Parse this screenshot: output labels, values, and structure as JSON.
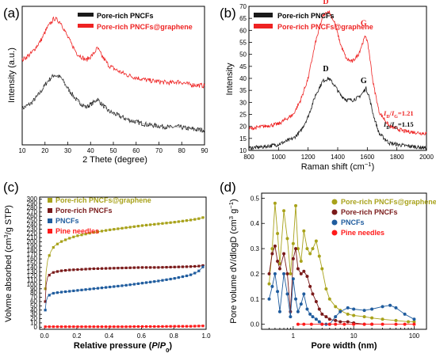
{
  "colors": {
    "black": "#1a1a1a",
    "red": "#ee2222",
    "olive": "#a8a21a",
    "maroon": "#7a1a1a",
    "blue": "#1f5c9e",
    "bright_red": "#ff1a1a"
  },
  "chart_data": [
    {
      "panel": "(a)",
      "type": "line",
      "xlabel": "2 Thete (degree)",
      "ylabel": "Intensity (a.u.)",
      "xlim": [
        10,
        90
      ],
      "x_ticks": [
        10,
        20,
        30,
        40,
        50,
        60,
        70,
        80,
        90
      ],
      "y_ticks_shown": false,
      "legend_position": "top-right",
      "series": [
        {
          "name": "Pore-rich PNCFs",
          "color": "#1a1a1a",
          "x": [
            10,
            14,
            18,
            21,
            24,
            27,
            30,
            34,
            38,
            41,
            43,
            45,
            48,
            52,
            56,
            60,
            65,
            70,
            75,
            78,
            80,
            83,
            86,
            90
          ],
          "y": [
            0.32,
            0.36,
            0.44,
            0.52,
            0.57,
            0.55,
            0.47,
            0.38,
            0.33,
            0.36,
            0.39,
            0.35,
            0.3,
            0.27,
            0.24,
            0.22,
            0.2,
            0.19,
            0.18,
            0.185,
            0.18,
            0.17,
            0.165,
            0.16
          ]
        },
        {
          "name": "Pore-rich PNCFs@graphene",
          "color": "#ee2222",
          "x": [
            10,
            14,
            18,
            21,
            24,
            27,
            30,
            34,
            38,
            41,
            43,
            45,
            48,
            52,
            56,
            60,
            65,
            70,
            75,
            78,
            80,
            83,
            86,
            90
          ],
          "y": [
            0.68,
            0.73,
            0.82,
            0.92,
            0.99,
            0.96,
            0.85,
            0.73,
            0.68,
            0.72,
            0.77,
            0.71,
            0.64,
            0.6,
            0.57,
            0.55,
            0.53,
            0.52,
            0.51,
            0.52,
            0.515,
            0.5,
            0.495,
            0.49
          ]
        }
      ]
    },
    {
      "panel": "(b)",
      "type": "line",
      "xlabel": "Raman shift (cm⁻¹)",
      "ylabel": "Intensity",
      "xlim": [
        800,
        2000
      ],
      "ylim": [
        10,
        70
      ],
      "x_ticks": [
        800,
        1000,
        1200,
        1400,
        1600,
        1800,
        2000
      ],
      "y_ticks": [
        10,
        15,
        20,
        25,
        30,
        35,
        40,
        45,
        50,
        55,
        60,
        65,
        70
      ],
      "legend_position": "top-left",
      "annotations": [
        "D",
        "G",
        "D",
        "G",
        "I_D/I_G=1.21",
        "I_D/I_G=1.15"
      ],
      "series": [
        {
          "name": "Pore-rich PNCFs",
          "color": "#1a1a1a",
          "x": [
            800,
            900,
            1000,
            1100,
            1150,
            1200,
            1250,
            1300,
            1340,
            1380,
            1420,
            1460,
            1500,
            1540,
            1570,
            1590,
            1610,
            1640,
            1680,
            1750,
            1850,
            2000
          ],
          "y": [
            11,
            11.5,
            12.5,
            15,
            18,
            24,
            33,
            39,
            40,
            37,
            33,
            31,
            31,
            32,
            34,
            36,
            33,
            25,
            17,
            13,
            12,
            11
          ]
        },
        {
          "name": "Pore-rich PNCFs@graphene",
          "color": "#ee2222",
          "x": [
            800,
            900,
            1000,
            1100,
            1150,
            1200,
            1250,
            1300,
            1340,
            1380,
            1420,
            1460,
            1500,
            1540,
            1570,
            1590,
            1610,
            1640,
            1680,
            1750,
            1850,
            2000
          ],
          "y": [
            19,
            20,
            21,
            25,
            31,
            40,
            55,
            66,
            68,
            63,
            54,
            48,
            47,
            50,
            55,
            58,
            52,
            38,
            26,
            20,
            18,
            17
          ]
        }
      ]
    },
    {
      "panel": "(c)",
      "type": "line",
      "xlabel": "Relative pressure (P/P₀)",
      "ylabel": "Volvme absorbed (cm³/g STP)",
      "xlim": [
        0,
        1.0
      ],
      "ylim": [
        0,
        300
      ],
      "x_ticks": [
        0.0,
        0.2,
        0.4,
        0.6,
        0.8,
        1.0
      ],
      "y_ticks": [
        0,
        10,
        20,
        30,
        40,
        50,
        60,
        70,
        80,
        90,
        100,
        110,
        120,
        130,
        140,
        150,
        160,
        170,
        180,
        190,
        200,
        210,
        220,
        230,
        240,
        250,
        260,
        270,
        280,
        290,
        300
      ],
      "legend_position": "top-left",
      "series": [
        {
          "name": "Pore-rich PNCFs@graphene",
          "color": "#a8a21a",
          "marker": "square",
          "x": [
            0.005,
            0.01,
            0.02,
            0.04,
            0.06,
            0.1,
            0.15,
            0.2,
            0.3,
            0.4,
            0.5,
            0.6,
            0.7,
            0.8,
            0.9,
            0.95,
            0.99
          ],
          "y": [
            90,
            130,
            158,
            178,
            190,
            200,
            208,
            214,
            222,
            228,
            233,
            238,
            242,
            246,
            251,
            254,
            258
          ]
        },
        {
          "name": "Pore-rich PNCFs",
          "color": "#7a1a1a",
          "marker": "square",
          "x": [
            0.005,
            0.01,
            0.02,
            0.04,
            0.06,
            0.1,
            0.15,
            0.2,
            0.3,
            0.4,
            0.5,
            0.6,
            0.7,
            0.8,
            0.9,
            0.95,
            0.99
          ],
          "y": [
            60,
            100,
            118,
            126,
            129,
            132,
            134,
            135,
            137,
            138,
            139,
            140,
            140,
            141,
            142,
            143,
            145
          ]
        },
        {
          "name": "PNCFs",
          "color": "#1f5c9e",
          "marker": "square",
          "x": [
            0.005,
            0.01,
            0.02,
            0.04,
            0.06,
            0.1,
            0.15,
            0.2,
            0.3,
            0.4,
            0.5,
            0.6,
            0.7,
            0.8,
            0.9,
            0.95,
            0.99
          ],
          "y": [
            40,
            60,
            72,
            78,
            80,
            82,
            84,
            86,
            90,
            94,
            98,
            103,
            108,
            114,
            122,
            130,
            145
          ]
        },
        {
          "name": "Pine needles",
          "color": "#ff1a1a",
          "marker": "square",
          "x": [
            0.005,
            0.05,
            0.1,
            0.2,
            0.3,
            0.4,
            0.5,
            0.6,
            0.7,
            0.8,
            0.9,
            0.99
          ],
          "y": [
            1,
            1,
            1,
            1,
            1,
            1,
            1,
            1.5,
            1.5,
            2,
            2,
            3
          ]
        }
      ]
    },
    {
      "panel": "(d)",
      "type": "line",
      "xlabel": "Pore width (nm)",
      "ylabel": "Pore volume dV/dlogD (cm³ g⁻¹)",
      "xscale": "log",
      "xlim": [
        0.3,
        160
      ],
      "ylim": [
        -0.02,
        0.52
      ],
      "x_ticks": [
        1,
        10,
        100
      ],
      "y_ticks": [
        0.0,
        0.1,
        0.2,
        0.3,
        0.4,
        0.5
      ],
      "legend_position": "top-right",
      "series": [
        {
          "name": "Pore-rich PNCFs@graphene",
          "color": "#a8a21a",
          "marker": "circle",
          "x": [
            0.4,
            0.45,
            0.5,
            0.55,
            0.6,
            0.7,
            0.8,
            0.9,
            1.0,
            1.1,
            1.2,
            1.35,
            1.5,
            1.7,
            1.9,
            2.1,
            2.4,
            2.7,
            3.0,
            3.5,
            4,
            5,
            6,
            8,
            10,
            15,
            20,
            30,
            50,
            80,
            100
          ],
          "y": [
            0.16,
            0.3,
            0.48,
            0.36,
            0.24,
            0.45,
            0.34,
            0.2,
            0.32,
            0.47,
            0.3,
            0.25,
            0.37,
            0.3,
            0.28,
            0.3,
            0.33,
            0.27,
            0.22,
            0.14,
            0.1,
            0.07,
            0.055,
            0.04,
            0.035,
            0.03,
            0.025,
            0.02,
            0.015,
            0.01,
            0.01
          ]
        },
        {
          "name": "Pore-rich PNCFs",
          "color": "#7a1a1a",
          "marker": "circle",
          "x": [
            0.4,
            0.45,
            0.5,
            0.55,
            0.6,
            0.7,
            0.8,
            0.9,
            1.0,
            1.1,
            1.2,
            1.35,
            1.5,
            1.7,
            1.9,
            2.1,
            2.4,
            2.7,
            3.0,
            3.5,
            4,
            5,
            6,
            8,
            10,
            15,
            20
          ],
          "y": [
            0.2,
            0.28,
            0.31,
            0.25,
            0.22,
            0.28,
            0.2,
            0.05,
            0.26,
            0.3,
            0.22,
            0.2,
            0.21,
            0.19,
            0.15,
            0.12,
            0.09,
            0.06,
            0.04,
            0.03,
            0.02,
            0.015,
            0.01,
            0.01,
            0.005,
            0.0,
            0.0
          ]
        },
        {
          "name": "PNCFs",
          "color": "#1f5c9e",
          "marker": "circle",
          "x": [
            0.4,
            0.45,
            0.5,
            0.55,
            0.6,
            0.7,
            0.8,
            0.9,
            1.0,
            1.1,
            1.2,
            1.35,
            1.5,
            1.7,
            1.9,
            2.1,
            2.4,
            2.7,
            3.0,
            3.5,
            4,
            5,
            6,
            8,
            10,
            15,
            20,
            30,
            40,
            50,
            70,
            100
          ],
          "y": [
            0.1,
            0.15,
            0.2,
            0.13,
            0.05,
            0.2,
            0.12,
            0.03,
            0.18,
            0.1,
            0.05,
            0.08,
            0.12,
            0.06,
            0.04,
            0.03,
            0.02,
            0.01,
            0.0,
            0.0,
            0.0,
            0.03,
            0.05,
            0.065,
            0.06,
            0.055,
            0.06,
            0.07,
            0.075,
            0.065,
            0.04,
            0.02
          ]
        },
        {
          "name": "Pine needles",
          "color": "#ff1a1a",
          "marker": "circle",
          "x": [
            1.2,
            1.5,
            2,
            3,
            4,
            5,
            7,
            10,
            15,
            20,
            30,
            50,
            70,
            100
          ],
          "y": [
            0.0,
            0.0,
            0.0,
            0.0,
            0.0,
            0.0,
            0.0,
            0.0,
            0.0,
            0.0,
            0.0,
            0.0,
            0.0,
            0.0
          ]
        }
      ]
    }
  ],
  "labels": {
    "panel_a": "(a)",
    "panel_b": "(b)",
    "panel_c": "(c)",
    "panel_d": "(d)",
    "a_xlabel": "2 Thete (degree)",
    "a_ylabel": "Intensity (a.u.)",
    "b_xlabel": "Raman shift (cm⁻¹)",
    "b_ylabel": "Intensity",
    "c_xlabel": "Relative pressure (P/P₀)",
    "c_ylabel": "Volvme absorbed (cm³/g STP)",
    "d_xlabel": "Pore width (nm)",
    "d_ylabel": "Pore volume dV/dlogD (cm³ g⁻¹)",
    "b_D": "D",
    "b_G": "G",
    "b_ratio_red": "I_D/I_G=1.21",
    "b_ratio_black": "I_D/I_G=1.15"
  }
}
